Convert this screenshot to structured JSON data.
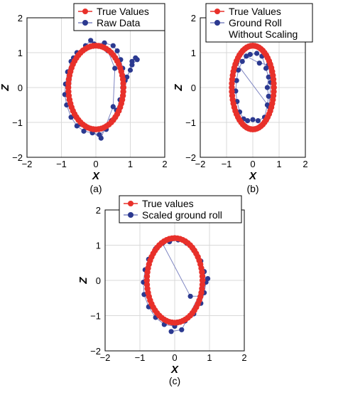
{
  "chart_data": [
    {
      "panel": "(a)",
      "type": "scatter",
      "xlabel": "X",
      "ylabel": "Z",
      "xlim": [
        -2,
        2
      ],
      "ylim": [
        -2,
        2
      ],
      "xticks": [
        "−2",
        "−1",
        "0",
        "1",
        "2"
      ],
      "yticks": [
        "−2",
        "−1",
        "0",
        "1",
        "2"
      ],
      "grid": true,
      "legend_position": "top-right",
      "series": [
        {
          "name": "True Values",
          "color": "#e8302a",
          "style": "line-markers",
          "ellipse": {
            "cx": 0,
            "cz": 0,
            "rx": 0.8,
            "rz": 1.2
          },
          "n_points": 64
        },
        {
          "name": "Raw Data",
          "color": "#2b3990",
          "style": "line-markers",
          "points": [
            [
              -0.05,
              1.25
            ],
            [
              0.25,
              1.28
            ],
            [
              0.5,
              1.2
            ],
            [
              0.62,
              1.05
            ],
            [
              0.72,
              0.8
            ],
            [
              0.78,
              0.55
            ],
            [
              0.82,
              0.3
            ],
            [
              0.8,
              0.05
            ],
            [
              0.85,
              0.2
            ],
            [
              1.0,
              0.5
            ],
            [
              1.05,
              0.75
            ],
            [
              1.15,
              0.85
            ],
            [
              1.2,
              0.8
            ],
            [
              1.05,
              0.65
            ],
            [
              0.9,
              0.3
            ],
            [
              0.78,
              0.0
            ],
            [
              0.7,
              -0.35
            ],
            [
              0.6,
              -0.65
            ],
            [
              0.45,
              -0.95
            ],
            [
              0.3,
              -1.2
            ],
            [
              0.1,
              -1.35
            ],
            [
              -0.1,
              -1.3
            ],
            [
              -0.35,
              -1.25
            ],
            [
              -0.55,
              -1.1
            ],
            [
              -0.72,
              -0.85
            ],
            [
              -0.85,
              -0.5
            ],
            [
              -0.9,
              -0.2
            ],
            [
              -0.88,
              0.1
            ],
            [
              -0.82,
              0.45
            ],
            [
              -0.72,
              0.75
            ],
            [
              -0.55,
              1.0
            ],
            [
              -0.3,
              1.2
            ],
            [
              -0.15,
              1.35
            ],
            [
              0.35,
              1.05
            ],
            [
              0.55,
              0.55
            ],
            [
              0.5,
              -0.55
            ],
            [
              0.15,
              -1.45
            ],
            [
              -0.45,
              -1.05
            ],
            [
              -0.78,
              -0.35
            ],
            [
              -0.65,
              0.85
            ]
          ]
        }
      ]
    },
    {
      "panel": "(b)",
      "type": "scatter",
      "xlabel": "X",
      "ylabel": "Z",
      "xlim": [
        -2,
        2
      ],
      "ylim": [
        -2,
        2
      ],
      "xticks": [
        "−2",
        "−1",
        "0",
        "1",
        "2"
      ],
      "yticks": [
        "−2",
        "−1",
        "0",
        "1",
        "2"
      ],
      "grid": true,
      "legend_position": "top-right",
      "series": [
        {
          "name": "True Values",
          "color": "#e8302a",
          "style": "line-markers",
          "ellipse": {
            "cx": 0,
            "cz": 0,
            "rx": 0.8,
            "rz": 1.2
          },
          "n_points": 64
        },
        {
          "name": "Ground Roll Without Scaling",
          "color": "#2b3990",
          "style": "line-markers",
          "points": [
            [
              -0.1,
              0.95
            ],
            [
              0.15,
              0.98
            ],
            [
              0.35,
              0.9
            ],
            [
              0.5,
              0.55
            ],
            [
              0.6,
              0.3
            ],
            [
              0.55,
              0.0
            ],
            [
              0.6,
              -0.25
            ],
            [
              0.55,
              -0.5
            ],
            [
              0.45,
              -0.85
            ],
            [
              0.2,
              -0.95
            ],
            [
              0.0,
              -0.92
            ],
            [
              -0.2,
              -0.95
            ],
            [
              -0.35,
              -0.9
            ],
            [
              -0.5,
              -0.7
            ],
            [
              -0.6,
              -0.4
            ],
            [
              -0.65,
              -0.1
            ],
            [
              -0.62,
              0.2
            ],
            [
              -0.55,
              0.5
            ],
            [
              -0.4,
              0.75
            ],
            [
              -0.25,
              0.9
            ],
            [
              0.25,
              0.7
            ],
            [
              0.6,
              0.65
            ],
            [
              0.68,
              0.15
            ],
            [
              0.62,
              -0.55
            ],
            [
              -0.62,
              0.7
            ]
          ]
        }
      ]
    },
    {
      "panel": "(c)",
      "type": "scatter",
      "xlabel": "X",
      "ylabel": "Z",
      "xlim": [
        -2,
        2
      ],
      "ylim": [
        -2,
        2
      ],
      "xticks": [
        "−2",
        "−1",
        "0",
        "1",
        "2"
      ],
      "yticks": [
        "−2",
        "−1",
        "0",
        "1",
        "2"
      ],
      "grid": true,
      "legend_position": "top",
      "series": [
        {
          "name": "True values",
          "color": "#e8302a",
          "style": "line-markers",
          "ellipse": {
            "cx": 0,
            "cz": 0,
            "rx": 0.8,
            "rz": 1.2
          },
          "n_points": 64
        },
        {
          "name": "Scaled ground roll",
          "color": "#2b3990",
          "style": "line-markers",
          "points": [
            [
              -0.15,
              1.1
            ],
            [
              0.1,
              1.15
            ],
            [
              0.35,
              1.05
            ],
            [
              0.55,
              0.85
            ],
            [
              0.75,
              0.55
            ],
            [
              0.85,
              0.25
            ],
            [
              0.9,
              -0.05
            ],
            [
              0.85,
              -0.35
            ],
            [
              0.75,
              -0.65
            ],
            [
              0.55,
              -0.95
            ],
            [
              0.3,
              -1.15
            ],
            [
              0.0,
              -1.3
            ],
            [
              -0.3,
              -1.25
            ],
            [
              -0.55,
              -1.05
            ],
            [
              -0.75,
              -0.75
            ],
            [
              -0.88,
              -0.4
            ],
            [
              -0.9,
              -0.05
            ],
            [
              -0.85,
              0.3
            ],
            [
              -0.75,
              0.6
            ],
            [
              -0.55,
              0.9
            ],
            [
              -0.35,
              1.05
            ],
            [
              0.45,
              -0.45
            ],
            [
              0.75,
              -0.45
            ],
            [
              0.95,
              0.05
            ],
            [
              0.2,
              -1.4
            ],
            [
              -0.1,
              -1.45
            ]
          ]
        }
      ]
    }
  ],
  "panel_labels": [
    "(a)",
    "(b)",
    "(c)"
  ]
}
